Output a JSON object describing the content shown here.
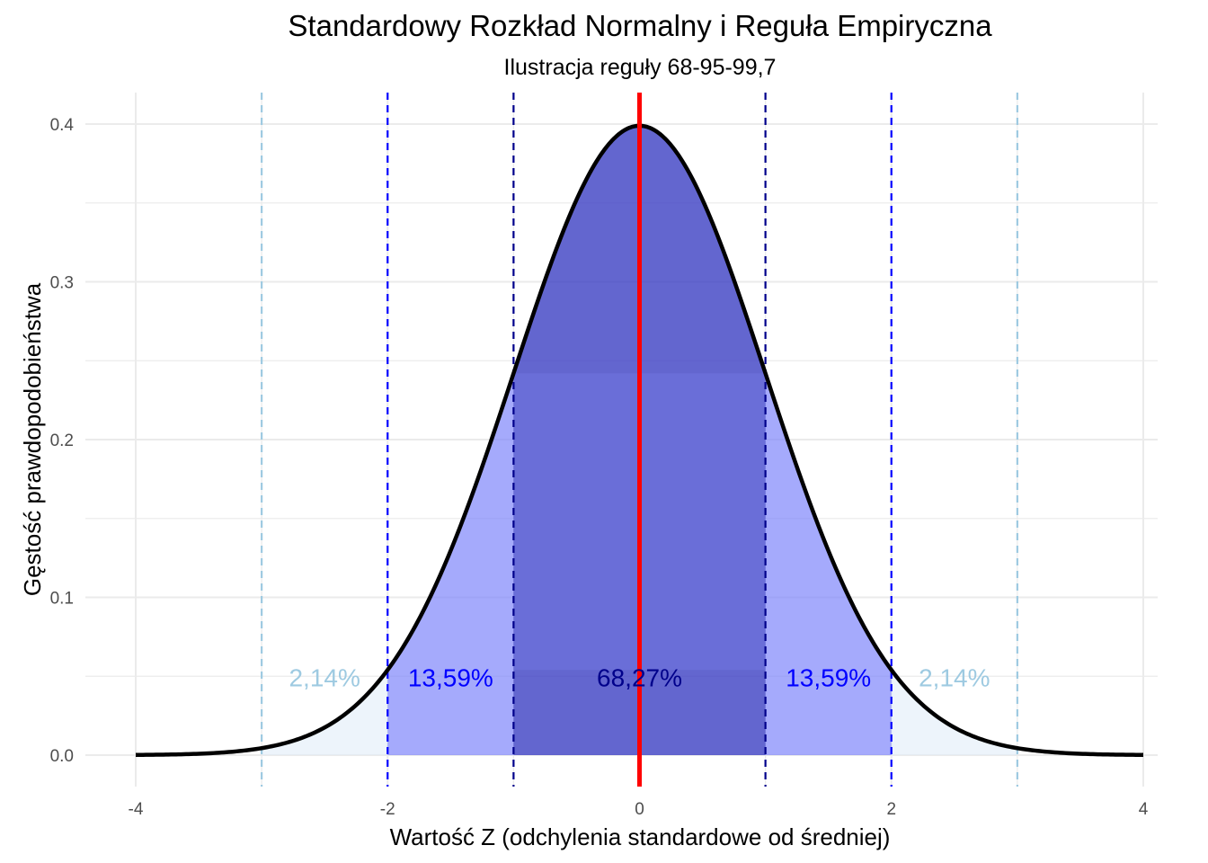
{
  "chart_data": {
    "type": "area",
    "title": "Standardowy Rozkład Normalny i Reguła Empiryczna",
    "subtitle": "Ilustracja reguły 68-95-99,7",
    "xlabel": "Wartość Z (odchylenia standardowe od średniej)",
    "ylabel": "Gęstość prawdopodobieństwa",
    "xlim": [
      -4,
      4
    ],
    "ylim": [
      0,
      0.4
    ],
    "x_ticks": [
      -4,
      -2,
      0,
      2,
      4
    ],
    "x_tick_labels": [
      "-4",
      "-2",
      "0",
      "2",
      "4"
    ],
    "y_ticks": [
      0.0,
      0.1,
      0.2,
      0.3,
      0.4
    ],
    "y_tick_labels": [
      "0.0",
      "0.1",
      "0.2",
      "0.3",
      "0.4"
    ],
    "grid": true,
    "mean_line": {
      "x": 0,
      "color": "#ff0000"
    },
    "sd_lines": [
      {
        "x": -3,
        "color": "#9ecae1"
      },
      {
        "x": -2,
        "color": "#0000ff"
      },
      {
        "x": -1,
        "color": "#00008b"
      },
      {
        "x": 1,
        "color": "#00008b"
      },
      {
        "x": 2,
        "color": "#0000ff"
      },
      {
        "x": 3,
        "color": "#9ecae1"
      }
    ],
    "shaded_regions": [
      {
        "from": -3,
        "to": 3,
        "color": "#deebf7"
      },
      {
        "from": -2,
        "to": 2,
        "color": "#0000ff"
      },
      {
        "from": -1,
        "to": 1,
        "color": "#00008b"
      }
    ],
    "center_box": {
      "from": -1,
      "to": 1,
      "y0": 0.054,
      "y1": 0.242,
      "color": "#6a6ed8"
    },
    "region_labels": [
      {
        "text": "2,14%",
        "x": -2.5,
        "y": 0.05,
        "color": "#9ecae1"
      },
      {
        "text": "13,59%",
        "x": -1.5,
        "y": 0.05,
        "color": "#0000ff"
      },
      {
        "text": "68,27%",
        "x": 0,
        "y": 0.05,
        "color": "#00008b"
      },
      {
        "text": "13,59%",
        "x": 1.5,
        "y": 0.05,
        "color": "#0000ff"
      },
      {
        "text": "2,14%",
        "x": 2.5,
        "y": 0.05,
        "color": "#9ecae1"
      }
    ],
    "curve": {
      "function": "standard normal density",
      "color": "#000000"
    }
  }
}
